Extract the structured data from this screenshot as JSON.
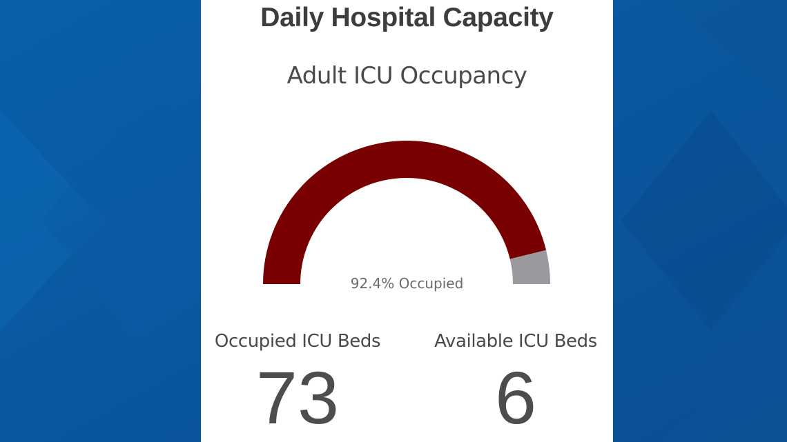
{
  "colors": {
    "background": "#0b5aa0",
    "panel": "#ffffff",
    "occupied": "#780000",
    "available": "#9a999e",
    "text_dark": "#3d3d3d"
  },
  "dashboard": {
    "title": "Daily Hospital Capacity",
    "gauge_title": "Adult ICU Occupancy",
    "gauge_label": "92.4% Occupied",
    "stats": [
      {
        "label": "Occupied ICU Beds",
        "value": "73"
      },
      {
        "label": "Available ICU Beds",
        "value": "6"
      }
    ]
  },
  "chart_data": {
    "type": "gauge",
    "title": "Adult ICU Occupancy",
    "value_percent": 92.4,
    "range": [
      0,
      100
    ],
    "segments": [
      {
        "name": "Occupied",
        "value": 73
      },
      {
        "name": "Available",
        "value": 6
      }
    ],
    "label": "92.4% Occupied"
  }
}
